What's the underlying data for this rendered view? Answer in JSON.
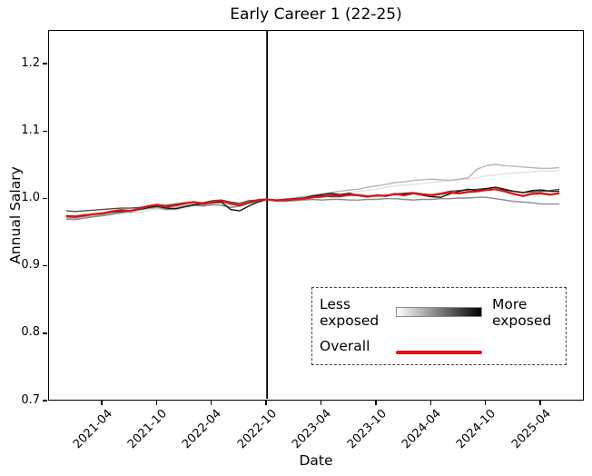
{
  "chart_data": {
    "type": "line",
    "title": "Early Career 1 (22-25)",
    "xlabel": "Date",
    "ylabel": "Annual Salary",
    "ylim": [
      0.7,
      1.25
    ],
    "grid": false,
    "x_start_month": "2020-12",
    "x_tick_labels": [
      "2021-04",
      "2021-10",
      "2022-04",
      "2022-10",
      "2023-04",
      "2023-10",
      "2024-04",
      "2024-10",
      "2025-04"
    ],
    "x_tick_month_offsets": [
      4,
      10,
      16,
      22,
      28,
      34,
      40,
      46,
      52
    ],
    "y_tick_labels": [
      "0.7",
      "0.8",
      "0.9",
      "1.0",
      "1.1",
      "1.2"
    ],
    "y_tick_values": [
      0.7,
      0.8,
      0.9,
      1.0,
      1.1,
      1.2
    ],
    "event_line_month_offset": 22,
    "event_line_color": "#000000",
    "legend": {
      "less": "Less exposed",
      "more": "More exposed",
      "overall": "Overall",
      "gradient_from": "#ffffff",
      "gradient_to": "#000000",
      "overall_color": "#dd1410"
    },
    "series": [
      {
        "name": "exposure-quintile-1-least-exposed",
        "color": "#e2e2e2",
        "width": 1.4,
        "values": [
          0.97,
          0.971,
          0.972,
          0.974,
          0.975,
          0.977,
          0.979,
          0.98,
          0.98,
          0.983,
          0.985,
          0.984,
          0.984,
          0.987,
          0.99,
          0.993,
          0.995,
          0.993,
          0.99,
          0.992,
          0.996,
          0.998,
          1.0,
          1.0,
          1.0,
          1.002,
          1.003,
          1.004,
          1.005,
          1.007,
          1.008,
          1.01,
          1.012,
          1.013,
          1.015,
          1.018,
          1.02,
          1.021,
          1.022,
          1.024,
          1.025,
          1.026,
          1.028,
          1.029,
          1.03,
          1.032,
          1.035,
          1.036,
          1.038,
          1.039,
          1.04,
          1.041,
          1.042,
          1.042,
          1.043
        ]
      },
      {
        "name": "exposure-quintile-2",
        "color": "#b5b5b5",
        "width": 1.4,
        "values": [
          0.972,
          0.972,
          0.974,
          0.975,
          0.977,
          0.98,
          0.982,
          0.981,
          0.984,
          0.986,
          0.988,
          0.986,
          0.988,
          0.991,
          0.993,
          0.991,
          0.994,
          0.996,
          0.992,
          0.994,
          0.997,
          0.999,
          1.0,
          0.999,
          1.001,
          1.002,
          1.004,
          1.006,
          1.008,
          1.01,
          1.012,
          1.014,
          1.015,
          1.018,
          1.02,
          1.022,
          1.025,
          1.026,
          1.028,
          1.029,
          1.03,
          1.029,
          1.028,
          1.03,
          1.032,
          1.045,
          1.05,
          1.052,
          1.05,
          1.049,
          1.048,
          1.047,
          1.046,
          1.046,
          1.047
        ]
      },
      {
        "name": "exposure-quintile-3",
        "color": "#8a8a8a",
        "width": 1.4,
        "values": [
          0.971,
          0.97,
          0.972,
          0.974,
          0.976,
          0.978,
          0.98,
          0.982,
          0.985,
          0.987,
          0.988,
          0.985,
          0.986,
          0.989,
          0.991,
          0.99,
          0.992,
          0.991,
          0.988,
          0.99,
          0.994,
          0.997,
          1.0,
          0.998,
          0.997,
          0.998,
          0.999,
          1.0,
          0.999,
          1.0,
          1.0,
          0.999,
          0.999,
          1.0,
          1.0,
          1.001,
          1.001,
          1.0,
          0.999,
          1.0,
          1.0,
          1.001,
          1.001,
          1.002,
          1.002,
          1.003,
          1.003,
          1.001,
          0.999,
          0.997,
          0.996,
          0.995,
          0.993,
          0.993,
          0.993
        ]
      },
      {
        "name": "exposure-quintile-4",
        "color": "#4d4d4d",
        "width": 1.4,
        "values": [
          0.983,
          0.982,
          0.983,
          0.984,
          0.985,
          0.986,
          0.987,
          0.987,
          0.988,
          0.99,
          0.992,
          0.991,
          0.993,
          0.995,
          0.996,
          0.995,
          0.998,
          0.999,
          0.996,
          0.994,
          0.998,
          0.999,
          1.0,
          0.999,
          1.0,
          1.001,
          1.002,
          1.004,
          1.005,
          1.004,
          1.004,
          1.006,
          1.007,
          1.005,
          1.005,
          1.006,
          1.008,
          1.009,
          1.01,
          1.008,
          1.007,
          1.009,
          1.012,
          1.013,
          1.014,
          1.015,
          1.016,
          1.015,
          1.014,
          1.012,
          1.01,
          1.011,
          1.012,
          1.013,
          1.015
        ]
      },
      {
        "name": "exposure-quintile-5-most-exposed",
        "color": "#161616",
        "width": 1.4,
        "values": [
          0.976,
          0.975,
          0.977,
          0.978,
          0.98,
          0.981,
          0.982,
          0.983,
          0.985,
          0.988,
          0.99,
          0.987,
          0.986,
          0.989,
          0.992,
          0.993,
          0.995,
          0.996,
          0.985,
          0.983,
          0.99,
          0.996,
          1.0,
          0.999,
          0.999,
          1.001,
          1.002,
          1.005,
          1.007,
          1.009,
          1.007,
          1.009,
          1.006,
          1.004,
          1.005,
          1.006,
          1.007,
          1.008,
          1.009,
          1.006,
          1.004,
          1.003,
          1.008,
          1.012,
          1.015,
          1.013,
          1.016,
          1.018,
          1.015,
          1.012,
          1.01,
          1.013,
          1.014,
          1.012,
          1.012
        ]
      },
      {
        "name": "overall",
        "color": "#dd1410",
        "width": 2.3,
        "values": [
          0.975,
          0.974,
          0.976,
          0.978,
          0.979,
          0.982,
          0.984,
          0.983,
          0.986,
          0.99,
          0.992,
          0.989,
          0.991,
          0.994,
          0.996,
          0.993,
          0.996,
          0.998,
          0.994,
          0.991,
          0.995,
          0.999,
          1.0,
          0.998,
          0.999,
          1.0,
          1.001,
          1.003,
          1.004,
          1.006,
          1.005,
          1.007,
          1.006,
          1.004,
          1.006,
          1.005,
          1.008,
          1.006,
          1.009,
          1.007,
          1.006,
          1.008,
          1.01,
          1.009,
          1.011,
          1.012,
          1.014,
          1.015,
          1.012,
          1.008,
          1.005,
          1.008,
          1.009,
          1.007,
          1.009
        ]
      }
    ]
  }
}
